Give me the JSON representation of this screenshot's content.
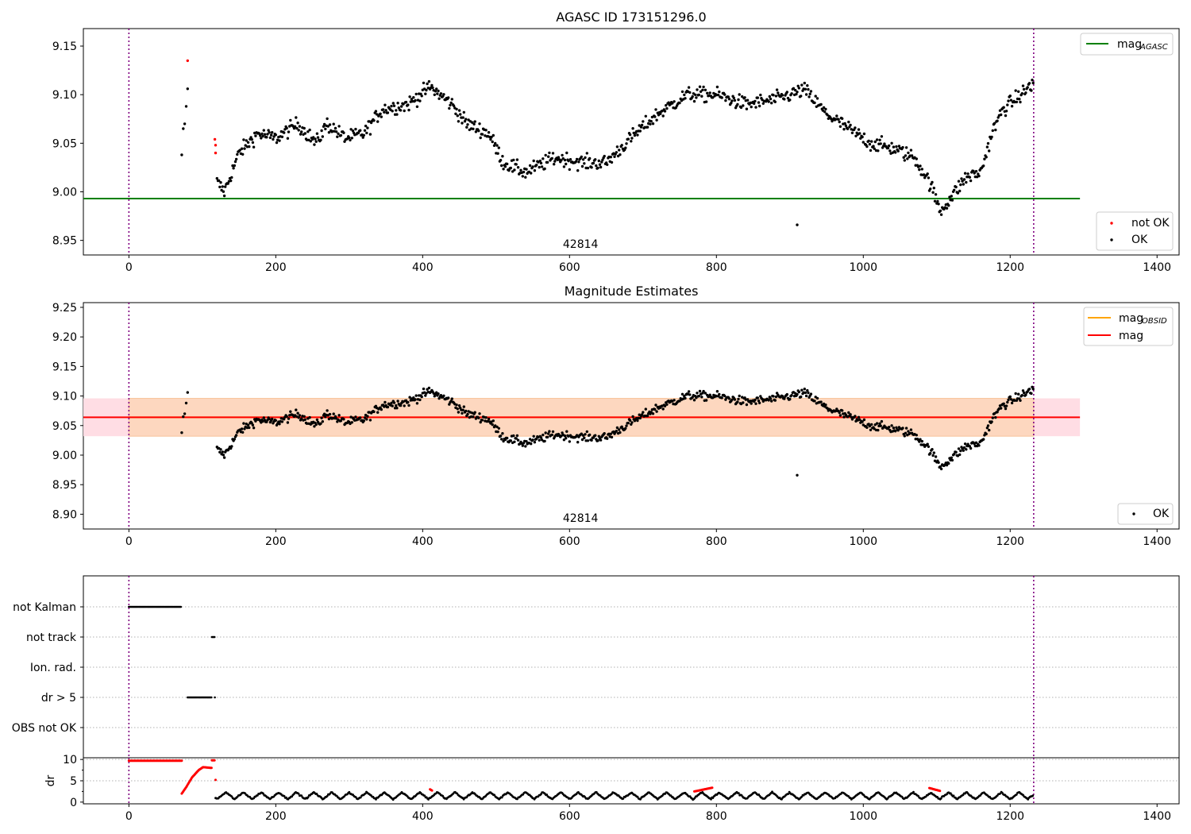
{
  "chart_data": [
    {
      "type": "scatter",
      "title": "AGASC ID 173151296.0",
      "xlabel": "",
      "ylabel": "",
      "xlim": [
        -62,
        1430
      ],
      "ylim": [
        8.935,
        9.168
      ],
      "xticks": [
        0,
        200,
        400,
        600,
        800,
        1000,
        1200,
        1400
      ],
      "yticks": [
        8.95,
        9.0,
        9.05,
        9.1,
        9.15
      ],
      "xtick_labels": [
        "0",
        "200",
        "400",
        "600",
        "800",
        "1000",
        "1200",
        "1400"
      ],
      "ytick_labels": [
        "8.95",
        "9.00",
        "9.05",
        "9.10",
        "9.15"
      ],
      "annotation": "42814",
      "vlines": [
        0,
        1232
      ],
      "hlines": [
        {
          "name": "mag_AGASC",
          "y": 8.993,
          "x_range": [
            -62,
            1295
          ],
          "color": "#008000"
        }
      ],
      "legend_upper": {
        "position": "top-right",
        "entries": [
          {
            "label": "mag",
            "subscript": "AGASC",
            "color": "#008000",
            "kind": "line"
          }
        ]
      },
      "legend_lower": {
        "position": "bottom-right",
        "entries": [
          {
            "label": "not OK",
            "color": "#ff0000",
            "kind": "marker"
          },
          {
            "label": "OK",
            "color": "#000000",
            "kind": "marker"
          }
        ]
      },
      "series": [
        {
          "name": "not OK",
          "color": "#ff0000",
          "x": [
            80,
            117,
            118,
            118
          ],
          "y": [
            9.135,
            9.054,
            9.048,
            9.04
          ]
        },
        {
          "name": "OK",
          "color": "#000000",
          "x": [
            72,
            74,
            76,
            78,
            80,
            910
          ],
          "y": [
            9.038,
            9.065,
            9.07,
            9.088,
            9.106,
            8.966
          ],
          "curve": [
            [
              120,
              9.01
            ],
            [
              130,
              9.0
            ],
            [
              150,
              9.04
            ],
            [
              175,
              9.06
            ],
            [
              200,
              9.055
            ],
            [
              230,
              9.07
            ],
            [
              255,
              9.05
            ],
            [
              270,
              9.07
            ],
            [
              295,
              9.055
            ],
            [
              320,
              9.06
            ],
            [
              345,
              9.085
            ],
            [
              380,
              9.09
            ],
            [
              410,
              9.108
            ],
            [
              440,
              9.09
            ],
            [
              460,
              9.07
            ],
            [
              490,
              9.06
            ],
            [
              510,
              9.03
            ],
            [
              540,
              9.02
            ],
            [
              580,
              9.035
            ],
            [
              620,
              9.03
            ],
            [
              650,
              9.03
            ],
            [
              690,
              9.06
            ],
            [
              720,
              9.08
            ],
            [
              760,
              9.1
            ],
            [
              800,
              9.1
            ],
            [
              840,
              9.09
            ],
            [
              880,
              9.095
            ],
            [
              920,
              9.105
            ],
            [
              950,
              9.08
            ],
            [
              980,
              9.065
            ],
            [
              1010,
              9.05
            ],
            [
              1040,
              9.045
            ],
            [
              1070,
              9.035
            ],
            [
              1090,
              9.01
            ],
            [
              1105,
              8.98
            ],
            [
              1120,
              8.995
            ],
            [
              1140,
              9.015
            ],
            [
              1160,
              9.02
            ],
            [
              1175,
              9.06
            ],
            [
              1190,
              9.085
            ],
            [
              1215,
              9.1
            ],
            [
              1235,
              9.115
            ]
          ]
        }
      ]
    },
    {
      "type": "scatter",
      "title": "Magnitude Estimates",
      "xlabel": "",
      "ylabel": "",
      "xlim": [
        -62,
        1430
      ],
      "ylim": [
        8.875,
        9.258
      ],
      "xticks": [
        0,
        200,
        400,
        600,
        800,
        1000,
        1200,
        1400
      ],
      "yticks": [
        8.9,
        8.95,
        9.0,
        9.05,
        9.1,
        9.15,
        9.2,
        9.25
      ],
      "xtick_labels": [
        "0",
        "200",
        "400",
        "600",
        "800",
        "1000",
        "1200",
        "1400"
      ],
      "ytick_labels": [
        "8.90",
        "8.95",
        "9.00",
        "9.05",
        "9.10",
        "9.15",
        "9.20",
        "9.25"
      ],
      "annotation": "42814",
      "vlines": [
        0,
        1232
      ],
      "band_mag": {
        "y_range": [
          9.032,
          9.096
        ],
        "x_range": [
          -62,
          1295
        ],
        "color": "#ffdde4"
      },
      "band_obsid": {
        "y_range": [
          9.032,
          9.096
        ],
        "x_range": [
          0,
          1232
        ],
        "color": "#fdd7bf"
      },
      "hlines": [
        {
          "name": "mag_OBSID",
          "y": 9.064,
          "x_range": [
            0,
            1232
          ],
          "color": "#ffa500"
        },
        {
          "name": "mag",
          "y": 9.064,
          "x_range": [
            -62,
            1295
          ],
          "color": "#ff0000"
        }
      ],
      "legend_upper": {
        "position": "top-right",
        "entries": [
          {
            "label": "mag",
            "subscript": "OBSID",
            "color": "#ffa500",
            "kind": "line"
          },
          {
            "label": "mag",
            "subscript": "",
            "color": "#ff0000",
            "kind": "line"
          }
        ]
      },
      "legend_lower": {
        "position": "bottom-right",
        "entries": [
          {
            "label": "OK",
            "color": "#000000",
            "kind": "marker"
          }
        ]
      },
      "series": [
        {
          "name": "OK",
          "color": "#000000",
          "x": [
            72,
            74,
            76,
            78,
            80,
            910
          ],
          "y": [
            9.038,
            9.065,
            9.07,
            9.088,
            9.106,
            8.966
          ],
          "curve_from_panel": 0
        }
      ]
    },
    {
      "type": "scatter",
      "title": "",
      "xlabel": "",
      "xlim": [
        -62,
        1430
      ],
      "categories": [
        "not Kalman",
        "not track",
        "Ion. rad.",
        "dr > 5",
        "OBS not OK"
      ],
      "flags": [
        {
          "category": "not Kalman",
          "x_range": [
            0,
            72
          ]
        },
        {
          "category": "not track",
          "x_range": [
            113,
            117
          ]
        },
        {
          "category": "dr > 5",
          "x_range": [
            80,
            113
          ]
        },
        {
          "category": "dr > 5",
          "x_range": [
            117,
            118
          ]
        }
      ],
      "vlines": [
        0,
        1232
      ]
    },
    {
      "type": "scatter",
      "title": "",
      "ylabel": "dr",
      "xlim": [
        -62,
        1430
      ],
      "ylim": [
        -0.4,
        10.4
      ],
      "xticks": [
        0,
        200,
        400,
        600,
        800,
        1000,
        1200,
        1400
      ],
      "yticks": [
        0,
        5,
        10
      ],
      "xtick_labels": [
        "0",
        "200",
        "400",
        "600",
        "800",
        "1000",
        "1200",
        "1400"
      ],
      "ytick_labels": [
        "0",
        "5",
        "10"
      ],
      "vlines": [
        0,
        1232
      ],
      "series": [
        {
          "name": "dr (not OK)",
          "color": "#ff0000",
          "segments": [
            [
              [
                0,
                9.7
              ],
              [
                72,
                9.7
              ]
            ],
            [
              [
                72,
                2.0
              ],
              [
                78,
                3.5
              ],
              [
                86,
                5.8
              ],
              [
                95,
                7.5
              ],
              [
                101,
                8.2
              ],
              [
                113,
                8.0
              ]
            ],
            [
              [
                113,
                9.8
              ],
              [
                117,
                9.8
              ]
            ],
            [
              [
                410,
                3.0
              ],
              [
                413,
                2.7
              ]
            ],
            [
              [
                770,
                2.5
              ],
              [
                795,
                3.4
              ]
            ],
            [
              [
                1090,
                3.3
              ],
              [
                1105,
                2.6
              ]
            ]
          ],
          "points": [
            [
              118,
              5.2
            ]
          ]
        },
        {
          "name": "dr (OK)",
          "color": "#000000",
          "x_range": [
            118,
            1232
          ],
          "baseline": 1.3,
          "amplitude": 1.0,
          "period": 24
        }
      ]
    }
  ]
}
